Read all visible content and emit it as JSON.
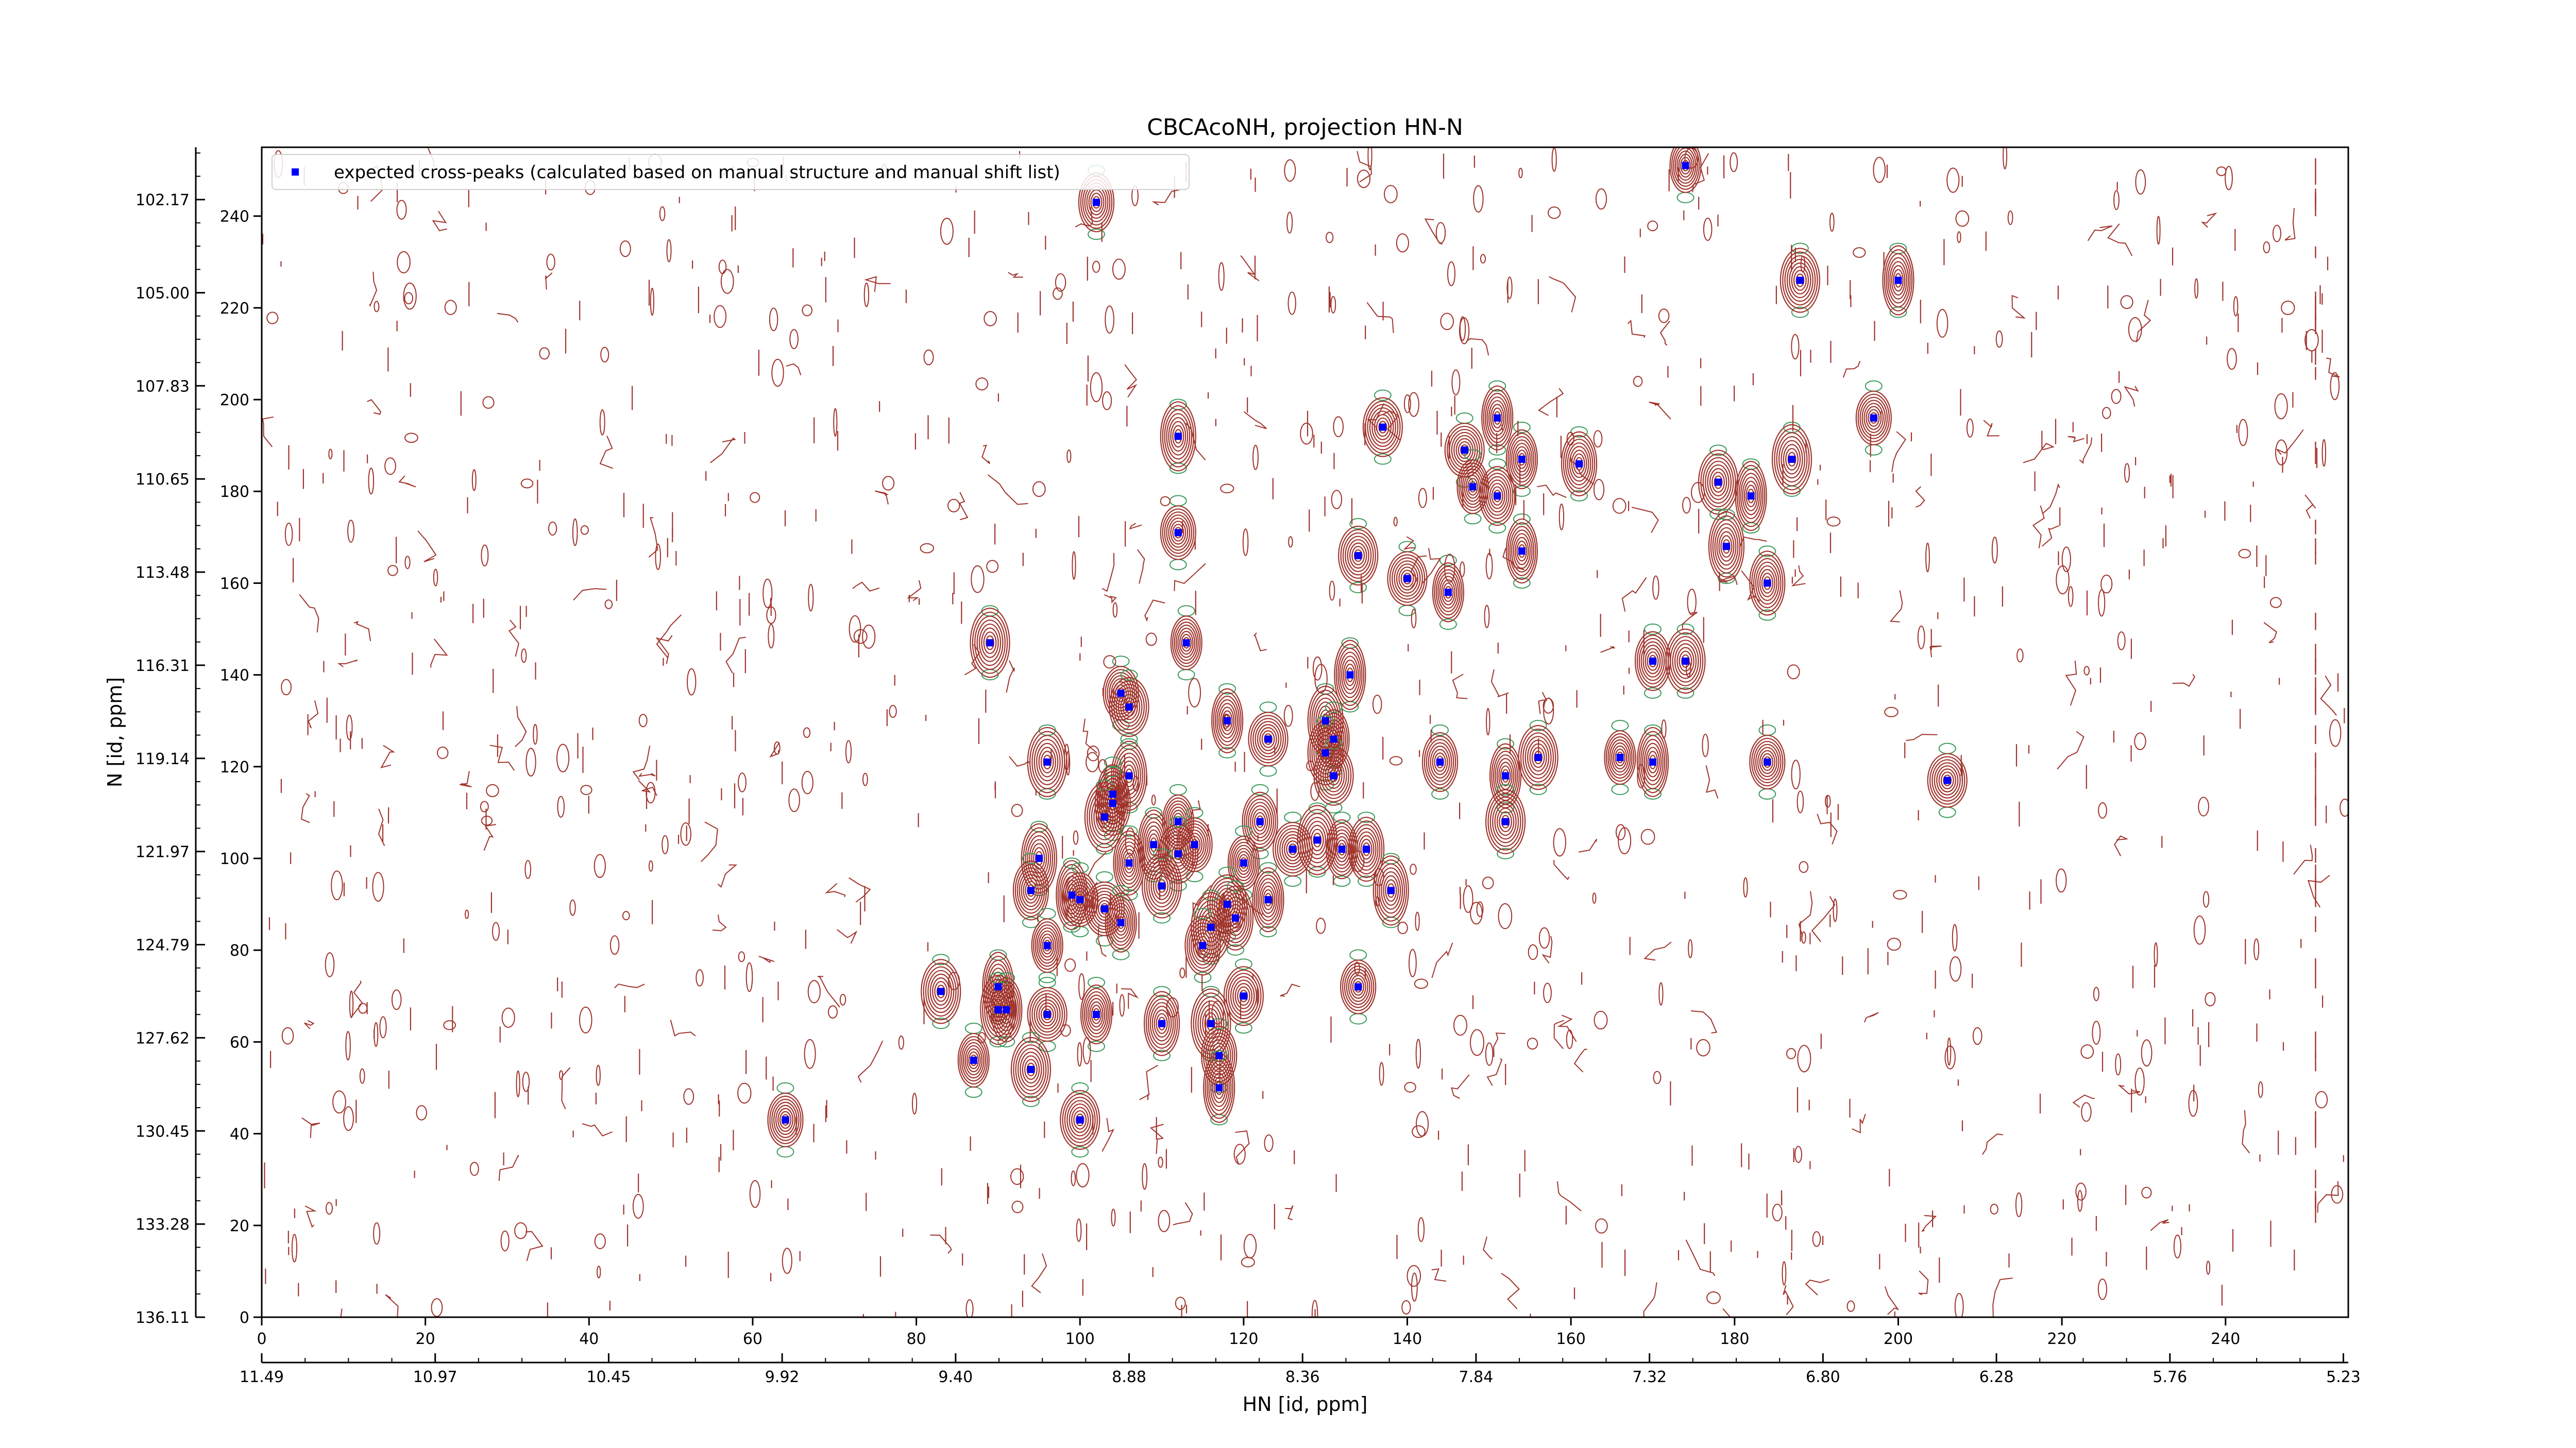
{
  "chart_data": {
    "type": "scatter",
    "title": "CBCAcoNH, projection HN-N",
    "xlabel": "HN [id, ppm]",
    "ylabel": "N [id, ppm]",
    "x_index_range": [
      0,
      255
    ],
    "y_index_range": [
      0,
      255
    ],
    "x_ticks": [
      0,
      20,
      40,
      60,
      80,
      100,
      120,
      140,
      160,
      180,
      200,
      220,
      240
    ],
    "y_ticks": [
      0,
      20,
      40,
      60,
      80,
      100,
      120,
      140,
      160,
      180,
      200,
      220,
      240
    ],
    "x_ppm_ticks": [
      {
        "index": 0,
        "label": "11.49"
      },
      {
        "index": 21.2,
        "label": "10.97"
      },
      {
        "index": 42.4,
        "label": "10.45"
      },
      {
        "index": 63.6,
        "label": "9.92"
      },
      {
        "index": 84.8,
        "label": "9.40"
      },
      {
        "index": 106.0,
        "label": "8.88"
      },
      {
        "index": 127.2,
        "label": "8.36"
      },
      {
        "index": 148.4,
        "label": "7.84"
      },
      {
        "index": 169.6,
        "label": "7.32"
      },
      {
        "index": 190.8,
        "label": "6.80"
      },
      {
        "index": 212.0,
        "label": "6.28"
      },
      {
        "index": 233.2,
        "label": "5.76"
      },
      {
        "index": 254.4,
        "label": "5.23"
      }
    ],
    "y_ppm_ticks": [
      {
        "index": 0,
        "label": "136.11"
      },
      {
        "index": 20.3,
        "label": "133.28"
      },
      {
        "index": 40.6,
        "label": "130.45"
      },
      {
        "index": 60.9,
        "label": "127.62"
      },
      {
        "index": 81.2,
        "label": "124.79"
      },
      {
        "index": 101.5,
        "label": "121.97"
      },
      {
        "index": 121.8,
        "label": "119.14"
      },
      {
        "index": 142.1,
        "label": "116.31"
      },
      {
        "index": 162.4,
        "label": "113.48"
      },
      {
        "index": 182.7,
        "label": "110.65"
      },
      {
        "index": 203.0,
        "label": "107.83"
      },
      {
        "index": 223.3,
        "label": "105.00"
      },
      {
        "index": 243.6,
        "label": "102.17"
      }
    ],
    "legend": {
      "label": "expected cross-peaks (calculated based on manual structure and manual shift list)",
      "placement": "upper-left"
    },
    "marker_color": "#0000ff",
    "contour_colors": {
      "positive": "#a0342c",
      "negative": "#3c9a5c"
    },
    "grid": false,
    "series": [
      {
        "name": "expected cross-peaks (calculated based on manual structure and manual shift list)",
        "points": [
          [
            174,
            251
          ],
          [
            102,
            243
          ],
          [
            188,
            226
          ],
          [
            200,
            226
          ],
          [
            197,
            196
          ],
          [
            137,
            194
          ],
          [
            151,
            196
          ],
          [
            112,
            192
          ],
          [
            147,
            189
          ],
          [
            154,
            187
          ],
          [
            161,
            186
          ],
          [
            187,
            187
          ],
          [
            148,
            181
          ],
          [
            151,
            179
          ],
          [
            178,
            182
          ],
          [
            182,
            179
          ],
          [
            112,
            171
          ],
          [
            134,
            166
          ],
          [
            154,
            167
          ],
          [
            179,
            168
          ],
          [
            140,
            161
          ],
          [
            145,
            158
          ],
          [
            184,
            160
          ],
          [
            89,
            147
          ],
          [
            113,
            147
          ],
          [
            170,
            143
          ],
          [
            174,
            143
          ],
          [
            133,
            140
          ],
          [
            105,
            136
          ],
          [
            106,
            133
          ],
          [
            118,
            130
          ],
          [
            130,
            130
          ],
          [
            123,
            126
          ],
          [
            131,
            126
          ],
          [
            130,
            123
          ],
          [
            96,
            121
          ],
          [
            166,
            122
          ],
          [
            144,
            121
          ],
          [
            156,
            122
          ],
          [
            170,
            121
          ],
          [
            184,
            121
          ],
          [
            131,
            118
          ],
          [
            152,
            118
          ],
          [
            106,
            118
          ],
          [
            206,
            117
          ],
          [
            104,
            114
          ],
          [
            104,
            112
          ],
          [
            103,
            109
          ],
          [
            112,
            108
          ],
          [
            122,
            108
          ],
          [
            152,
            108
          ],
          [
            109,
            103
          ],
          [
            114,
            103
          ],
          [
            112,
            101
          ],
          [
            106,
            99
          ],
          [
            95,
            100
          ],
          [
            126,
            102
          ],
          [
            132,
            102
          ],
          [
            135,
            102
          ],
          [
            129,
            104
          ],
          [
            120,
            99
          ],
          [
            94,
            93
          ],
          [
            110,
            94
          ],
          [
            99,
            92
          ],
          [
            100,
            91
          ],
          [
            118,
            90
          ],
          [
            123,
            91
          ],
          [
            138,
            93
          ],
          [
            103,
            89
          ],
          [
            105,
            86
          ],
          [
            119,
            87
          ],
          [
            116,
            85
          ],
          [
            96,
            81
          ],
          [
            115,
            81
          ],
          [
            83,
            71
          ],
          [
            90,
            72
          ],
          [
            134,
            72
          ],
          [
            120,
            70
          ],
          [
            91,
            67
          ],
          [
            90,
            67
          ],
          [
            96,
            66
          ],
          [
            102,
            66
          ],
          [
            110,
            64
          ],
          [
            116,
            64
          ],
          [
            87,
            56
          ],
          [
            117,
            57
          ],
          [
            94,
            54
          ],
          [
            117,
            50
          ],
          [
            64,
            43
          ],
          [
            100,
            43
          ]
        ]
      }
    ]
  }
}
